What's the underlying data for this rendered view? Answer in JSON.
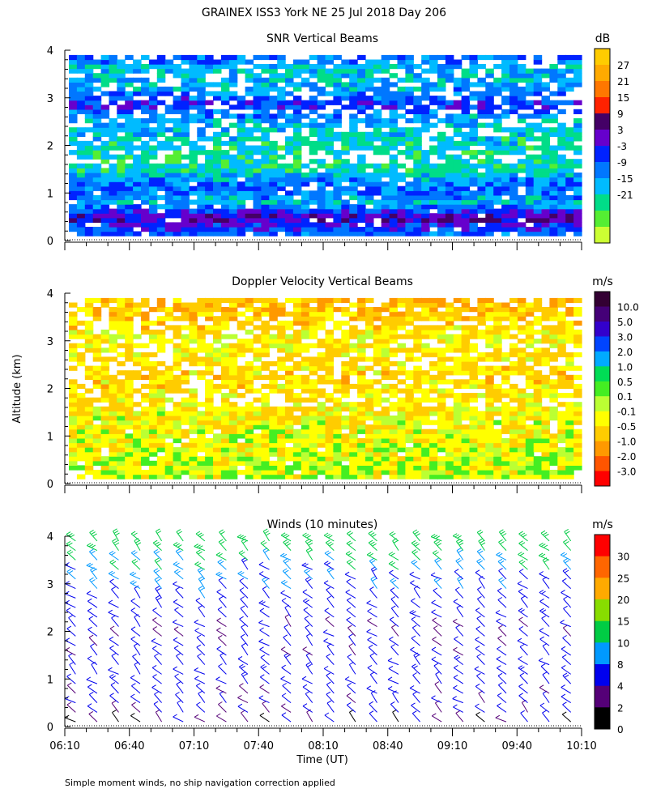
{
  "figure": {
    "title": "GRAINEX ISS3 York NE  25 Jul 2018 Day 206",
    "y_label": "Altitude (km)",
    "x_label": "Time (UT)",
    "footnote": "Simple moment winds, no ship navigation correction applied"
  },
  "chart_data": [
    {
      "type": "heatmap",
      "title": "SNR Vertical Beams",
      "xlabel": "",
      "ylabel": "Altitude (km)",
      "x_ticks": [],
      "y_ticks": [
        "0",
        "1",
        "2",
        "3",
        "4"
      ],
      "xlim": [
        "06:10",
        "10:10"
      ],
      "ylim": [
        0,
        4
      ],
      "colorbar": {
        "unit": "dB",
        "labels": [
          "27",
          "21",
          "15",
          "9",
          "3",
          "-3",
          "-9",
          "-15",
          "-21"
        ],
        "colors": [
          "#ffcc00",
          "#ffaa00",
          "#ff7700",
          "#ff2200",
          "#440066",
          "#6600cc",
          "#0022ff",
          "#0077ff",
          "#00bbff",
          "#00dd88",
          "#55ee33",
          "#ccff33"
        ]
      },
      "bands": [
        {
          "altitude": 0.15,
          "snr_db": -5
        },
        {
          "altitude": 0.5,
          "snr_db": 8
        },
        {
          "altitude": 0.8,
          "snr_db": -11
        },
        {
          "altitude": 1.15,
          "snr_db": -4
        },
        {
          "altitude": 1.5,
          "snr_db": -17
        },
        {
          "altitude": 2.0,
          "snr_db": -16
        },
        {
          "altitude": 2.6,
          "snr_db": -9
        },
        {
          "altitude": 2.85,
          "snr_db": 1
        },
        {
          "altitude": 3.2,
          "snr_db": -10
        },
        {
          "altitude": 3.6,
          "snr_db": -13
        },
        {
          "altitude": 3.8,
          "snr_db": -6
        }
      ]
    },
    {
      "type": "heatmap",
      "title": "Doppler Velocity Vertical Beams",
      "xlabel": "",
      "ylabel": "Altitude (km)",
      "x_ticks": [],
      "y_ticks": [
        "0",
        "1",
        "2",
        "3",
        "4"
      ],
      "xlim": [
        "06:10",
        "10:10"
      ],
      "ylim": [
        0,
        4
      ],
      "colorbar": {
        "unit": "m/s",
        "labels": [
          "10.0",
          "5.0",
          "3.0",
          "2.0",
          "1.0",
          "0.5",
          "0.1",
          "-0.1",
          "-0.5",
          "-1.0",
          "-2.0",
          "-3.0"
        ],
        "colors": [
          "#330033",
          "#440077",
          "#3300cc",
          "#0044ff",
          "#00aaff",
          "#00dd55",
          "#44ee22",
          "#bbff33",
          "#ffff00",
          "#ffcc00",
          "#ff9900",
          "#ff5500",
          "#ff0000"
        ]
      },
      "bands": [
        {
          "altitude": 0.4,
          "velocity_ms": -0.1
        },
        {
          "altitude": 1.2,
          "velocity_ms": -0.3
        },
        {
          "altitude": 2.2,
          "velocity_ms": -0.6
        },
        {
          "altitude": 3.0,
          "velocity_ms": -0.4
        },
        {
          "altitude": 3.7,
          "velocity_ms": -0.8
        }
      ]
    },
    {
      "type": "scatter",
      "title": "Winds (10 minutes)",
      "xlabel": "Time (UT)",
      "ylabel": "Altitude (km)",
      "x_ticks": [
        "06:10",
        "06:40",
        "07:10",
        "07:40",
        "08:10",
        "08:40",
        "09:10",
        "09:40",
        "10:10"
      ],
      "y_ticks": [
        "0",
        "1",
        "2",
        "3",
        "4"
      ],
      "xlim": [
        "06:10",
        "10:10"
      ],
      "ylim": [
        0,
        4
      ],
      "colorbar": {
        "unit": "m/s",
        "labels": [
          "30",
          "25",
          "20",
          "15",
          "10",
          "8",
          "4",
          "2",
          "0"
        ],
        "colors": [
          "#ff0000",
          "#ff6600",
          "#ffaa00",
          "#88dd00",
          "#00cc44",
          "#0099ff",
          "#0000ee",
          "#550077",
          "#000000"
        ]
      },
      "profile_times": [
        "06:15",
        "06:25",
        "06:35",
        "06:45",
        "06:55",
        "07:05",
        "07:15",
        "07:25",
        "07:35",
        "07:45",
        "07:55",
        "08:05",
        "08:15",
        "08:25",
        "08:35",
        "08:45",
        "08:55",
        "09:05",
        "09:15",
        "09:25",
        "09:35",
        "09:45",
        "09:55",
        "10:05"
      ],
      "altitudes_km": [
        0.1,
        0.3,
        0.5,
        0.7,
        0.9,
        1.1,
        1.3,
        1.5,
        1.7,
        1.9,
        2.1,
        2.3,
        2.5,
        2.7,
        2.9,
        3.1,
        3.3,
        3.5,
        3.7,
        3.9
      ],
      "speed_profile_ms": [
        3,
        4,
        5,
        5,
        6,
        6,
        6,
        5,
        5,
        5,
        5,
        6,
        6,
        7,
        7,
        8,
        9,
        10,
        12,
        13
      ]
    }
  ]
}
